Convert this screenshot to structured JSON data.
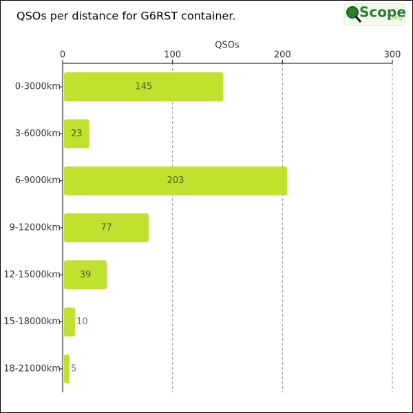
{
  "chart_data": {
    "type": "bar",
    "orientation": "horizontal",
    "title": "QSOs per distance for G6RST container.",
    "x_label": "QSOs",
    "logo": {
      "name": "Scope",
      "domain": ".org"
    },
    "categories": [
      "0-3000km",
      "3-6000km",
      "6-9000km",
      "9-12000km",
      "12-15000km",
      "15-18000km",
      "18-21000km"
    ],
    "values": [
      145,
      23,
      203,
      77,
      39,
      10,
      5
    ],
    "color": "#bfe22f",
    "xlim": [
      0,
      300
    ],
    "xticks": [
      0,
      100,
      200,
      300
    ],
    "grid": true
  }
}
